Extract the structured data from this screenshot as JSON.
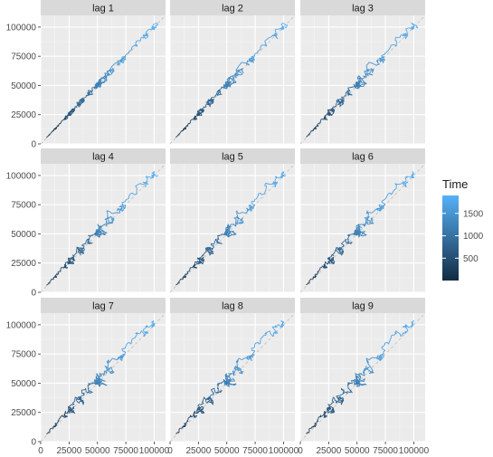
{
  "chart_data": {
    "type": "line",
    "title": "",
    "xlabel": "",
    "ylabel": "",
    "xlim": [
      0,
      110000
    ],
    "ylim": [
      0,
      110000
    ],
    "x_ticks": [
      0,
      25000,
      50000,
      75000,
      100000
    ],
    "x_tick_labels": [
      "0",
      "25000",
      "50000",
      "75000",
      "100000"
    ],
    "y_ticks": [
      0,
      25000,
      50000,
      75000,
      100000
    ],
    "y_tick_labels": [
      "0",
      "25000",
      "50000",
      "75000",
      "100000"
    ],
    "grid": true,
    "reference_line": "y = x (dashed)",
    "facets": [
      "lag 1",
      "lag 2",
      "lag 3",
      "lag 4",
      "lag 5",
      "lag 6",
      "lag 7",
      "lag 8",
      "lag 9"
    ],
    "color_scale": {
      "title": "Time",
      "ticks": [
        500,
        1000,
        1500
      ],
      "tick_labels": [
        "500",
        "1000",
        "1500"
      ],
      "range": [
        1,
        1900
      ],
      "low_color": "#132B43",
      "high_color": "#56B1F7"
    },
    "series_trend": {
      "time": [
        1,
        300,
        600,
        900,
        1200,
        1500,
        1650,
        1750,
        1900
      ],
      "value": [
        5000,
        15000,
        28000,
        40000,
        52000,
        65000,
        75000,
        95000,
        100000
      ]
    }
  },
  "colors": {
    "panel_bg": "#EBEBEB",
    "strip_bg": "#D9D9D9",
    "grid_major": "#FFFFFF",
    "axis_text": "#4D4D4D",
    "strip_text": "#1A1A1A"
  }
}
